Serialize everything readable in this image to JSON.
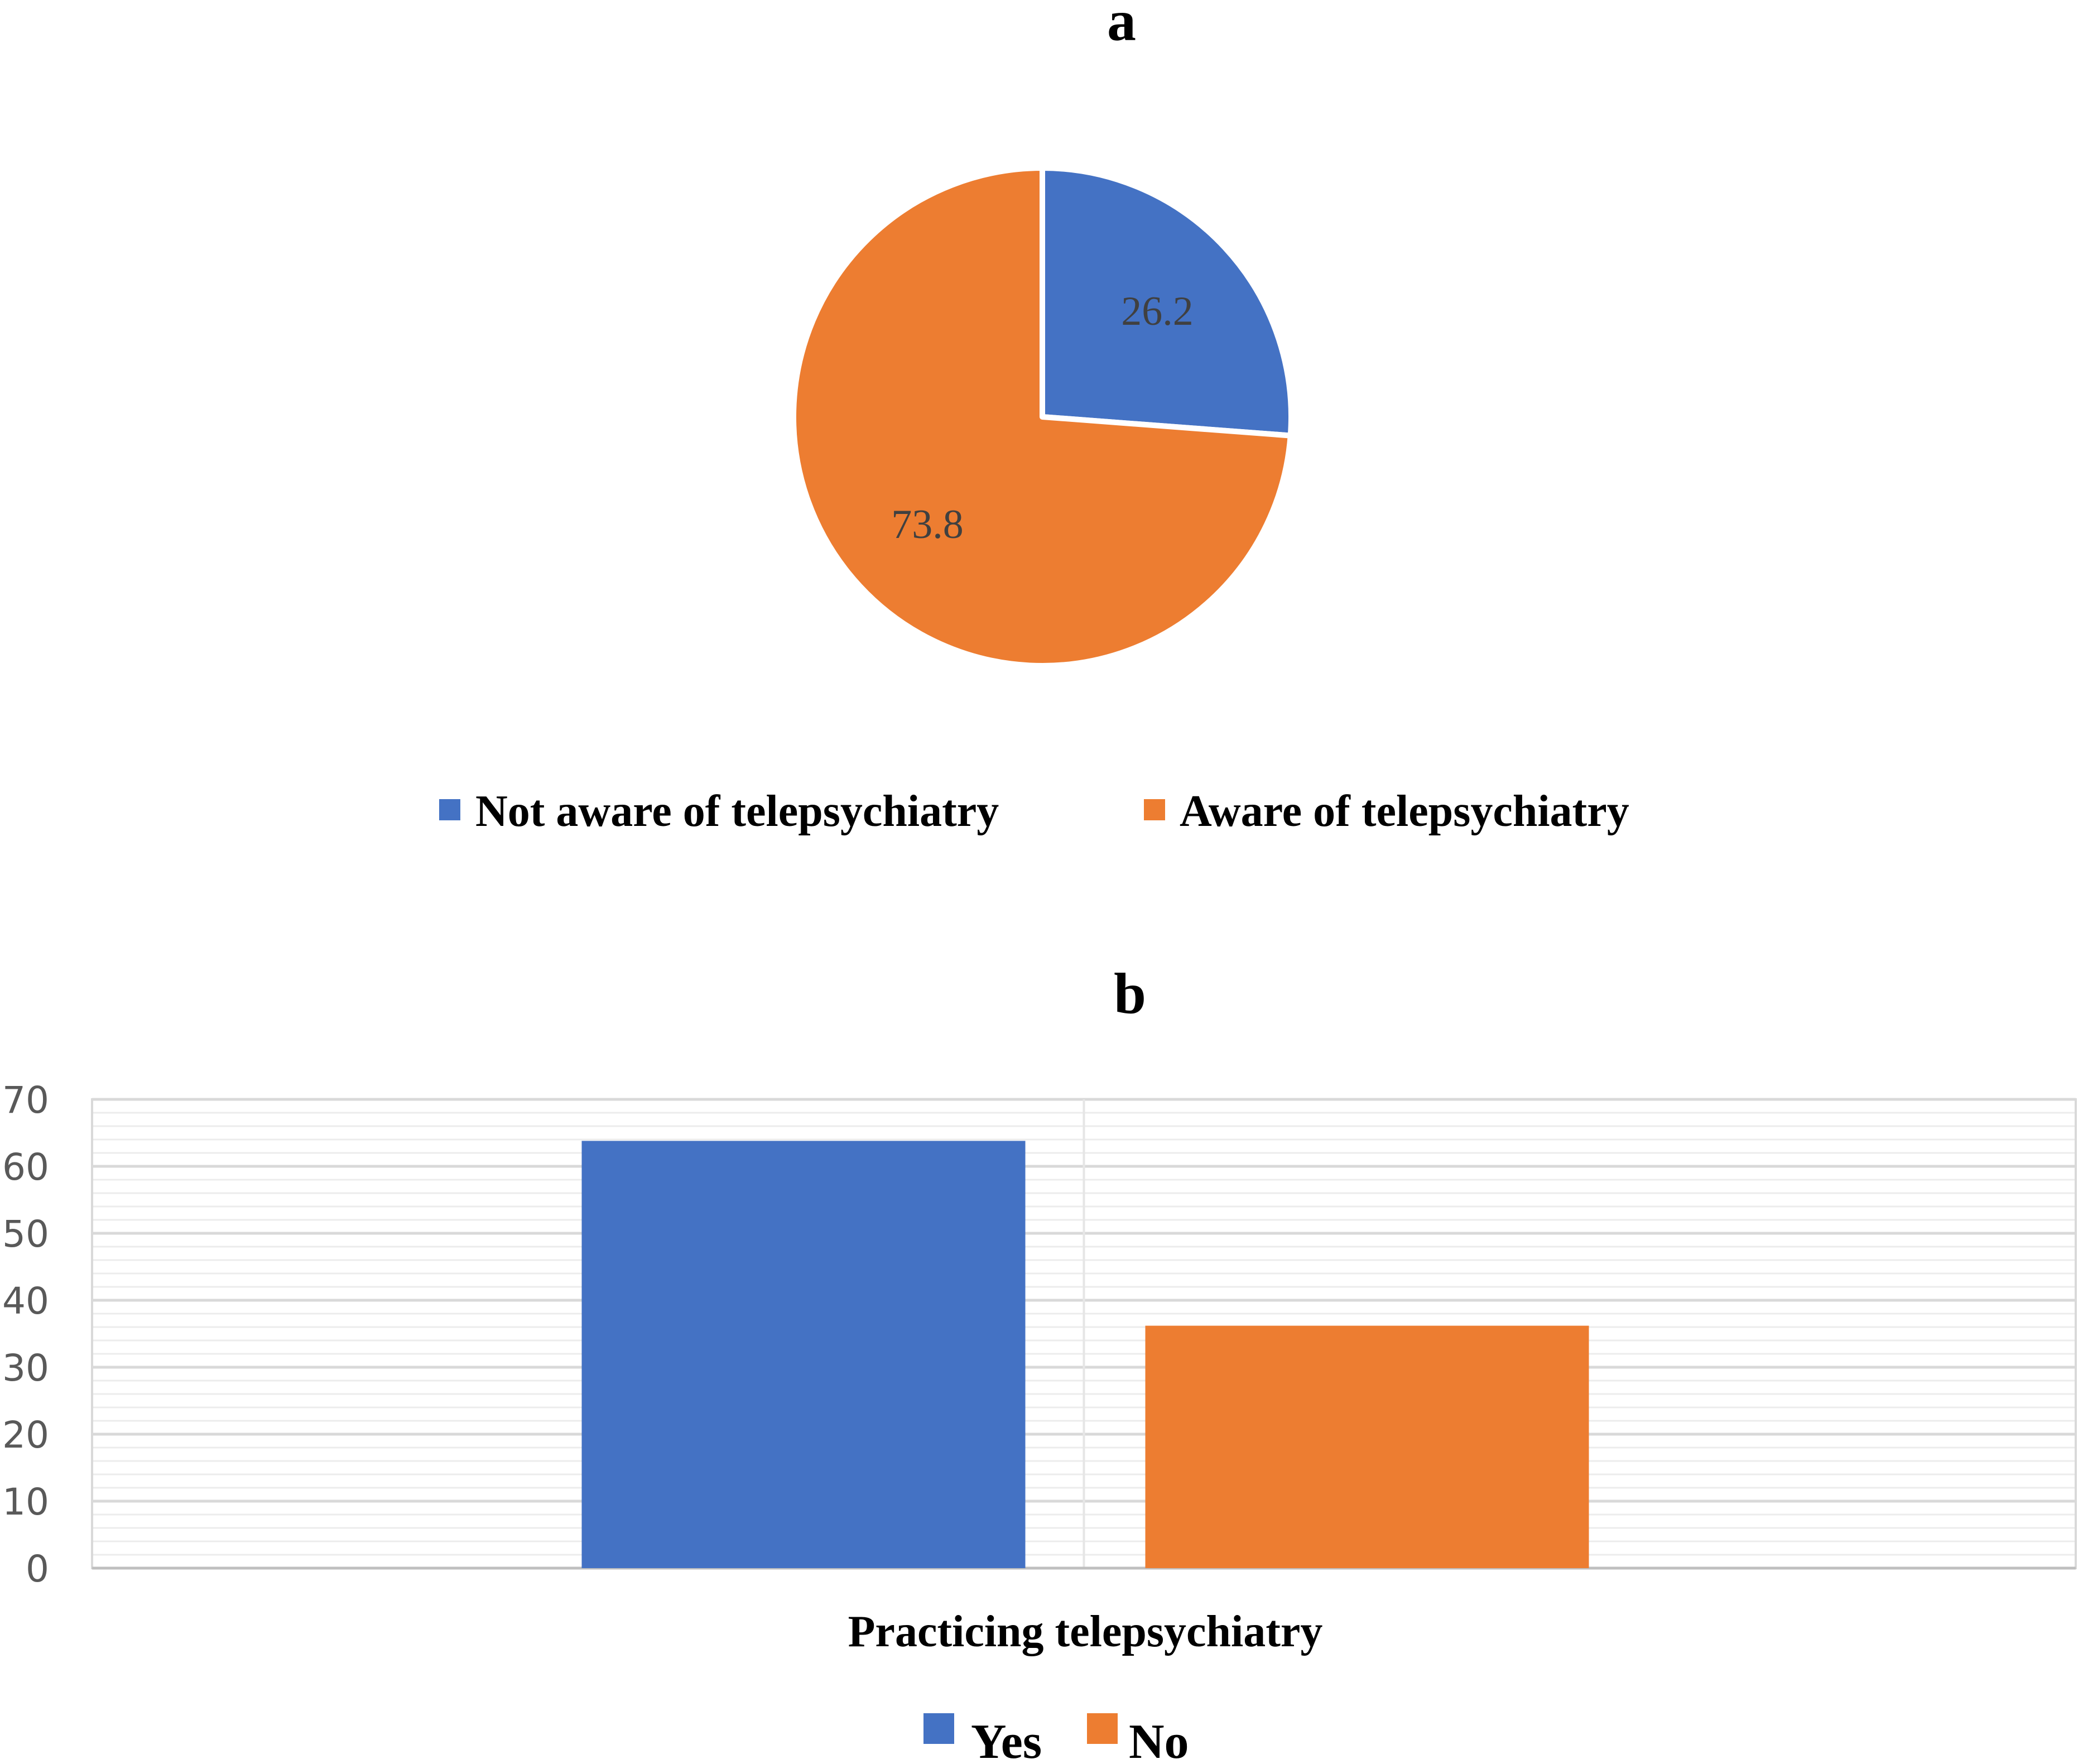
{
  "chart_data": [
    {
      "type": "pie",
      "title": "a",
      "slices": [
        {
          "label": "Not aware of telepsychiatry",
          "value": 26.2,
          "data_label": "26.2",
          "color": "#4472C4"
        },
        {
          "label": "Aware of telepsychiatry",
          "value": 73.8,
          "data_label": "73.8",
          "color": "#ED7D31"
        }
      ],
      "start_angle_deg": 0,
      "direction": "clockwise",
      "legend_position": "bottom"
    },
    {
      "type": "bar",
      "title": "b",
      "categories": [
        "Practicing telepsychiatry"
      ],
      "xlabel": "Practicing telepsychiatry",
      "ylabel": "",
      "ylim": [
        0,
        70
      ],
      "yticks": [
        0,
        10,
        20,
        30,
        40,
        50,
        60,
        70
      ],
      "series": [
        {
          "name": "Yes",
          "values": [
            63.8
          ],
          "color": "#4472C4"
        },
        {
          "name": "No",
          "values": [
            36.2
          ],
          "color": "#ED7D31"
        }
      ],
      "grid": true,
      "legend_position": "bottom"
    }
  ]
}
